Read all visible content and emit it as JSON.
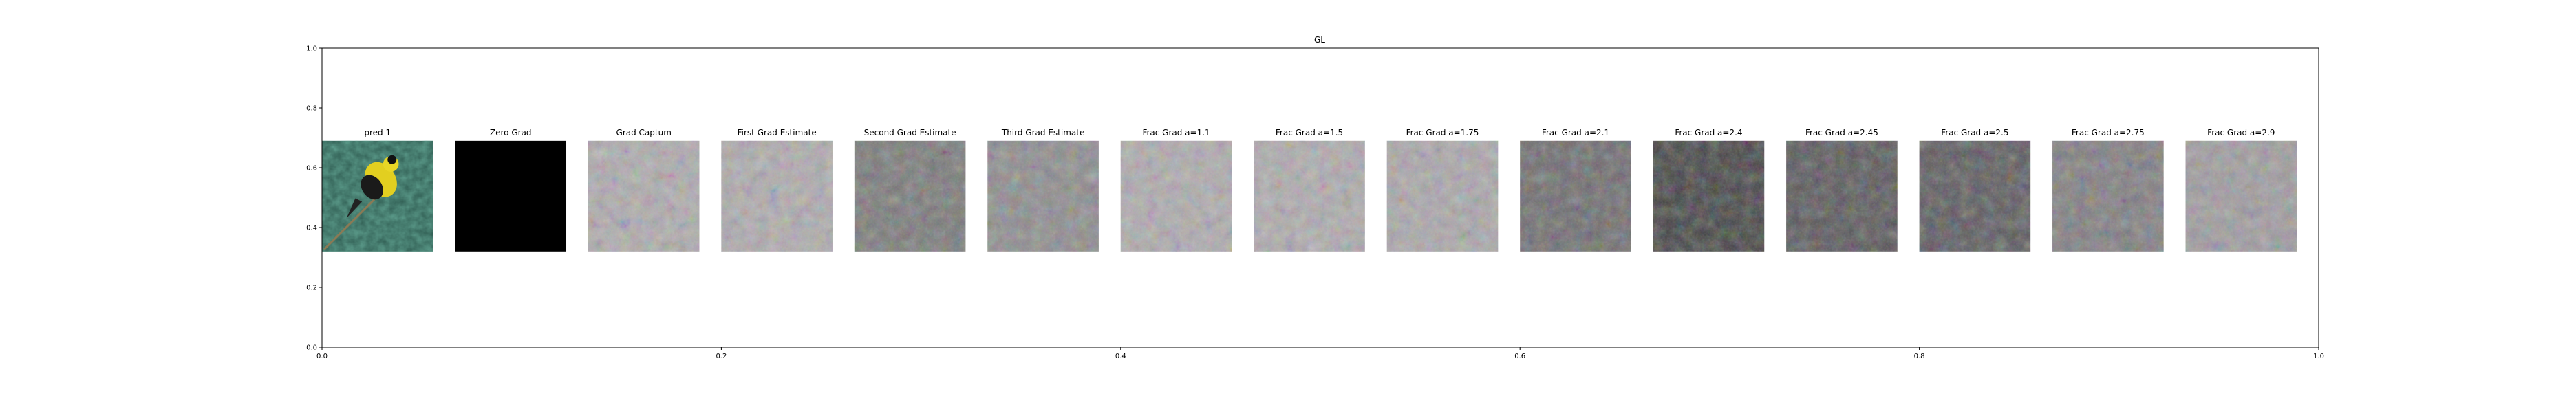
{
  "chart_data": {
    "type": "image_grid",
    "title": "GL",
    "xlabel": "",
    "ylabel": "",
    "xlim": [
      0.0,
      1.0
    ],
    "ylim": [
      0.0,
      1.0
    ],
    "xticks": [
      "0.0",
      "0.2",
      "0.4",
      "0.6",
      "0.8",
      "1.0"
    ],
    "yticks": [
      "0.0",
      "0.2",
      "0.4",
      "0.6",
      "0.8",
      "1.0"
    ],
    "grid": false,
    "panel_extent_y": [
      0.32,
      0.69
    ],
    "panels": [
      {
        "title": "pred 1",
        "kind": "photo-goldfinch",
        "base": "#2e5a50"
      },
      {
        "title": "Zero Grad",
        "kind": "black",
        "base": "#000000"
      },
      {
        "title": "Grad Captum",
        "kind": "noise",
        "base": "#aeaaad"
      },
      {
        "title": "First Grad Estimate",
        "kind": "noise",
        "base": "#aeaaad"
      },
      {
        "title": "Second Grad Estimate",
        "kind": "noise",
        "base": "#777777"
      },
      {
        "title": "Third Grad Estimate",
        "kind": "noise",
        "base": "#8b8a8c"
      },
      {
        "title": "Frac Grad a=1.1",
        "kind": "noise",
        "base": "#aeaaad"
      },
      {
        "title": "Frac Grad a=1.5",
        "kind": "noise",
        "base": "#aeaaad"
      },
      {
        "title": "Frac Grad a=1.75",
        "kind": "noise",
        "base": "#aaa6aa"
      },
      {
        "title": "Frac Grad a=2.1",
        "kind": "noise",
        "base": "#6b696c"
      },
      {
        "title": "Frac Grad a=2.4",
        "kind": "noise",
        "base": "#3f3f40"
      },
      {
        "title": "Frac Grad a=2.45",
        "kind": "noise",
        "base": "#555356"
      },
      {
        "title": "Frac Grad a=2.5",
        "kind": "noise",
        "base": "#58565a"
      },
      {
        "title": "Frac Grad a=2.75",
        "kind": "noise",
        "base": "#7e7b7f"
      },
      {
        "title": "Frac Grad a=2.9",
        "kind": "noise",
        "base": "#9e9a9e"
      }
    ]
  }
}
